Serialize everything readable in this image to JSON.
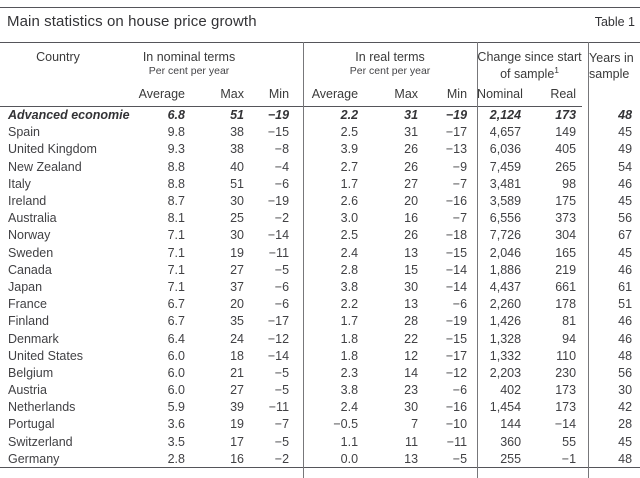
{
  "header": {
    "title": "Main statistics on house price growth",
    "table_label": "Table 1"
  },
  "colors": {
    "rule": "#55555a",
    "text": "#3a3a3a",
    "background": "#ffffff"
  },
  "table": {
    "columns": {
      "country_header": "Country",
      "groups": [
        {
          "label": "In nominal terms",
          "sublabel": "Per cent per year",
          "children": [
            "Average",
            "Max",
            "Min"
          ]
        },
        {
          "label": "In real terms",
          "sublabel": "Per cent per year",
          "children": [
            "Average",
            "Max",
            "Min"
          ]
        },
        {
          "label": "Change since start of sample",
          "footnote_mark": "1",
          "children": [
            "Nominal",
            "Real"
          ]
        },
        {
          "label": "Years in sample",
          "children": []
        }
      ]
    },
    "rows": [
      {
        "country": "Advanced economies",
        "emphasis": true,
        "values": [
          "6.8",
          "51",
          "−19",
          "2.2",
          "31",
          "−19",
          "2,124",
          "173",
          "48"
        ]
      },
      {
        "country": "Spain",
        "emphasis": false,
        "values": [
          "9.8",
          "38",
          "−15",
          "2.5",
          "31",
          "−17",
          "4,657",
          "149",
          "45"
        ]
      },
      {
        "country": "United Kingdom",
        "emphasis": false,
        "values": [
          "9.3",
          "38",
          "−8",
          "3.9",
          "26",
          "−13",
          "6,036",
          "405",
          "49"
        ]
      },
      {
        "country": "New Zealand",
        "emphasis": false,
        "values": [
          "8.8",
          "40",
          "−4",
          "2.7",
          "26",
          "−9",
          "7,459",
          "265",
          "54"
        ]
      },
      {
        "country": "Italy",
        "emphasis": false,
        "values": [
          "8.8",
          "51",
          "−6",
          "1.7",
          "27",
          "−7",
          "3,481",
          "98",
          "46"
        ]
      },
      {
        "country": "Ireland",
        "emphasis": false,
        "values": [
          "8.7",
          "30",
          "−19",
          "2.6",
          "20",
          "−16",
          "3,589",
          "175",
          "45"
        ]
      },
      {
        "country": "Australia",
        "emphasis": false,
        "values": [
          "8.1",
          "25",
          "−2",
          "3.0",
          "16",
          "−7",
          "6,556",
          "373",
          "56"
        ]
      },
      {
        "country": "Norway",
        "emphasis": false,
        "values": [
          "7.1",
          "30",
          "−14",
          "2.5",
          "26",
          "−18",
          "7,726",
          "304",
          "67"
        ]
      },
      {
        "country": "Sweden",
        "emphasis": false,
        "values": [
          "7.1",
          "19",
          "−11",
          "2.4",
          "13",
          "−15",
          "2,046",
          "165",
          "45"
        ]
      },
      {
        "country": "Canada",
        "emphasis": false,
        "values": [
          "7.1",
          "27",
          "−5",
          "2.8",
          "15",
          "−14",
          "1,886",
          "219",
          "46"
        ]
      },
      {
        "country": "Japan",
        "emphasis": false,
        "values": [
          "7.1",
          "37",
          "−6",
          "3.8",
          "30",
          "−14",
          "4,437",
          "661",
          "61"
        ]
      },
      {
        "country": "France",
        "emphasis": false,
        "values": [
          "6.7",
          "20",
          "−6",
          "2.2",
          "13",
          "−6",
          "2,260",
          "178",
          "51"
        ]
      },
      {
        "country": "Finland",
        "emphasis": false,
        "values": [
          "6.7",
          "35",
          "−17",
          "1.7",
          "28",
          "−19",
          "1,426",
          "81",
          "46"
        ]
      },
      {
        "country": "Denmark",
        "emphasis": false,
        "values": [
          "6.4",
          "24",
          "−12",
          "1.8",
          "22",
          "−15",
          "1,328",
          "94",
          "46"
        ]
      },
      {
        "country": "United States",
        "emphasis": false,
        "values": [
          "6.0",
          "18",
          "−14",
          "1.8",
          "12",
          "−17",
          "1,332",
          "110",
          "48"
        ]
      },
      {
        "country": "Belgium",
        "emphasis": false,
        "values": [
          "6.0",
          "21",
          "−5",
          "2.3",
          "14",
          "−12",
          "2,203",
          "230",
          "56"
        ]
      },
      {
        "country": "Austria",
        "emphasis": false,
        "values": [
          "6.0",
          "27",
          "−5",
          "3.8",
          "23",
          "−6",
          "402",
          "173",
          "30"
        ]
      },
      {
        "country": "Netherlands",
        "emphasis": false,
        "values": [
          "5.9",
          "39",
          "−11",
          "2.4",
          "30",
          "−16",
          "1,454",
          "173",
          "42"
        ]
      },
      {
        "country": "Portugal",
        "emphasis": false,
        "values": [
          "3.6",
          "19",
          "−7",
          "−0.5",
          "7",
          "−10",
          "144",
          "−14",
          "28"
        ]
      },
      {
        "country": "Switzerland",
        "emphasis": false,
        "values": [
          "3.5",
          "17",
          "−5",
          "1.1",
          "11",
          "−11",
          "360",
          "55",
          "45"
        ]
      },
      {
        "country": "Germany",
        "emphasis": false,
        "values": [
          "2.8",
          "16",
          "−2",
          "0.0",
          "13",
          "−5",
          "255",
          "−1",
          "48"
        ]
      }
    ]
  }
}
